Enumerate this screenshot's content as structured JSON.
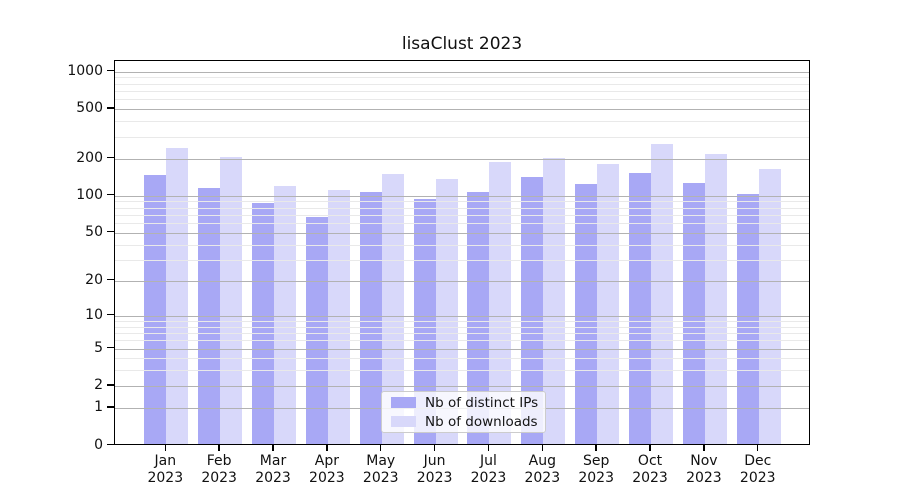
{
  "title": "lisaClust 2023",
  "legend": {
    "items": [
      {
        "label": "Nb of distinct IPs",
        "color": "#a8a8f5"
      },
      {
        "label": "Nb of downloads",
        "color": "#d8d8fa"
      }
    ]
  },
  "chart_data": {
    "type": "bar",
    "title": "lisaClust 2023",
    "categories": [
      "Jan 2023",
      "Feb 2023",
      "Mar 2023",
      "Apr 2023",
      "May 2023",
      "Jun 2023",
      "Jul 2023",
      "Aug 2023",
      "Sep 2023",
      "Oct 2023",
      "Nov 2023",
      "Dec 2023"
    ],
    "x_tick_labels": [
      {
        "line1": "Jan",
        "line2": "2023"
      },
      {
        "line1": "Feb",
        "line2": "2023"
      },
      {
        "line1": "Mar",
        "line2": "2023"
      },
      {
        "line1": "Apr",
        "line2": "2023"
      },
      {
        "line1": "May",
        "line2": "2023"
      },
      {
        "line1": "Jun",
        "line2": "2023"
      },
      {
        "line1": "Jul",
        "line2": "2023"
      },
      {
        "line1": "Aug",
        "line2": "2023"
      },
      {
        "line1": "Sep",
        "line2": "2023"
      },
      {
        "line1": "Oct",
        "line2": "2023"
      },
      {
        "line1": "Nov",
        "line2": "2023"
      },
      {
        "line1": "Dec",
        "line2": "2023"
      }
    ],
    "series": [
      {
        "name": "Nb of distinct IPs",
        "color": "#a8a8f5",
        "values": [
          147,
          115,
          86,
          67,
          106,
          93,
          107,
          140,
          124,
          151,
          125,
          103
        ]
      },
      {
        "name": "Nb of downloads",
        "color": "#d8d8fa",
        "values": [
          239,
          203,
          119,
          110,
          149,
          135,
          184,
          200,
          180,
          261,
          215,
          162
        ]
      }
    ],
    "xlabel": "",
    "ylabel": "",
    "yscale": "log1p",
    "ylim": [
      0,
      1220
    ],
    "y_major_ticks": [
      0,
      1,
      2,
      5,
      10,
      20,
      50,
      100,
      200,
      500,
      1000
    ],
    "y_minor_ticks": [
      3,
      4,
      6,
      7,
      8,
      9,
      30,
      40,
      60,
      70,
      80,
      90,
      300,
      400,
      600,
      700,
      800,
      900
    ],
    "grid": "horizontal",
    "legend_position": "inside-bottom-center"
  },
  "colors": {
    "major_grid": "#b2b2b2",
    "minor_grid": "#e9e9e9",
    "spine": "#000000",
    "background": "#ffffff",
    "text": "#111111"
  }
}
